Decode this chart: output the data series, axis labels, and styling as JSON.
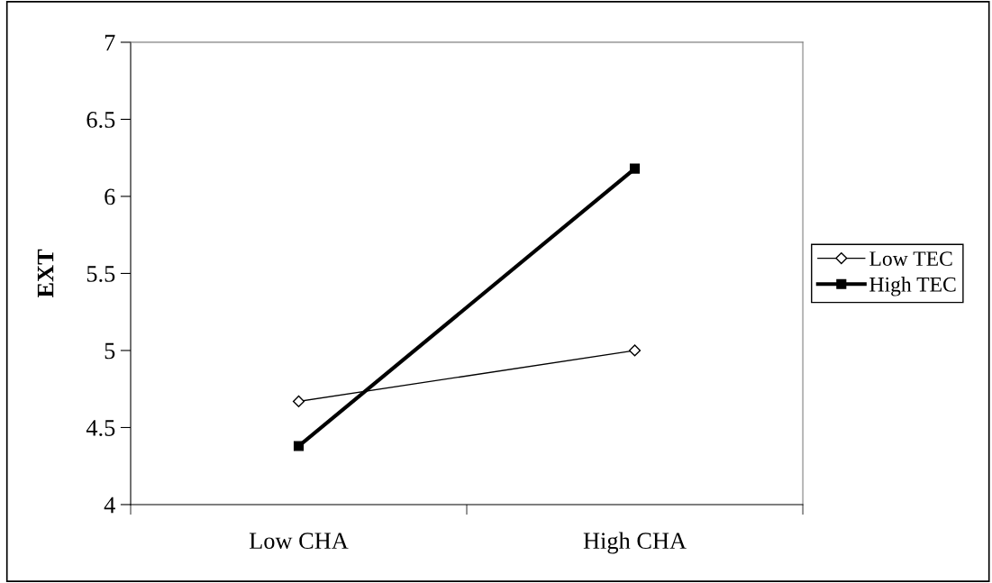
{
  "chart_data": {
    "type": "line",
    "ylabel": "EXT",
    "categories": [
      "Low CHA",
      "High CHA"
    ],
    "series": [
      {
        "name": "Low TEC",
        "color": "#000000",
        "marker": "diamond",
        "values": [
          4.67,
          5.0
        ]
      },
      {
        "name": "High TEC",
        "color": "#000000",
        "marker": "square",
        "values": [
          4.38,
          6.18
        ]
      }
    ],
    "ylim": [
      4,
      7
    ],
    "yticks": [
      4,
      4.5,
      5,
      5.5,
      6,
      6.5,
      7
    ],
    "legend": "right",
    "line_style": "solid"
  }
}
